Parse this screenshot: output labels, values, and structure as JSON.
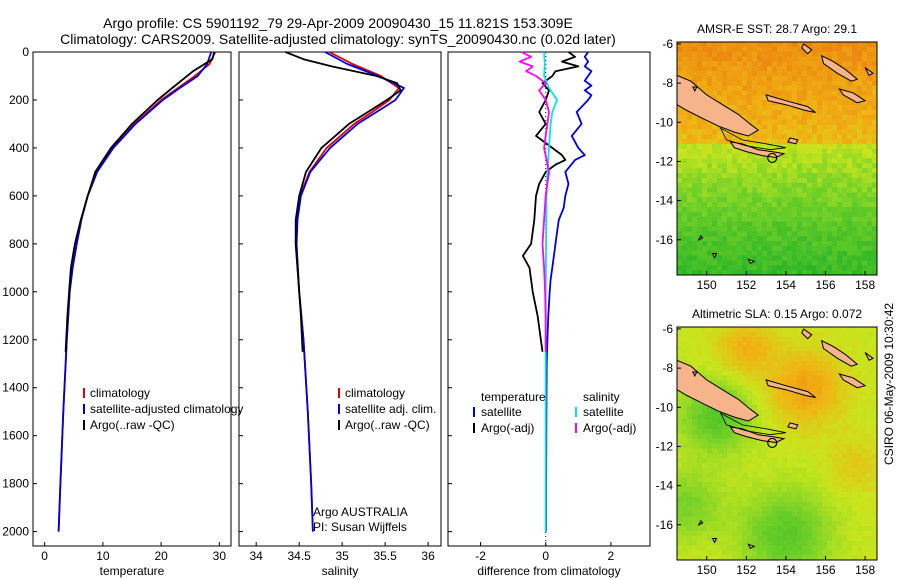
{
  "header": {
    "title_line1": "Argo profile: CS 5901192_79 29-Apr-2009 20090430_15 11.821S 153.309E",
    "title_line2": "Climatology: CARS2009. Satellite-adjusted climatology: synTS_20090430.nc (0.02d later)"
  },
  "footer_stamp": "CSIRO 06-May-2009 10:30:42",
  "colors": {
    "climatology": "#e00000",
    "satellite": "#0000e0",
    "argo": "#000000",
    "sal_satellite": "#00e5ee",
    "sal_argo": "#ff00ff",
    "land": "#f5b48a",
    "coast": "#000000"
  },
  "chart_data": [
    {
      "type": "line",
      "id": "temperature-profile",
      "xlabel": "temperature",
      "ylabel": "",
      "xlim": [
        -2,
        32
      ],
      "ylim": [
        2060,
        0
      ],
      "xticks": [
        0,
        10,
        20,
        30
      ],
      "yticks": [
        0,
        200,
        400,
        600,
        800,
        1000,
        1200,
        1400,
        1600,
        1800,
        2000
      ],
      "legend": [
        "climatology",
        "satellite-adjusted climatology",
        "Argo(..raw -QC)"
      ],
      "legend_placement": "lower-left",
      "series": [
        {
          "name": "climatology",
          "color": "climatology",
          "depth": [
            0,
            50,
            100,
            150,
            200,
            300,
            400,
            500,
            600,
            700,
            800,
            900,
            1000,
            1200,
            1500,
            1800,
            2000
          ],
          "values": [
            29.3,
            28.3,
            25.8,
            22.9,
            20.0,
            15.4,
            11.7,
            9.0,
            7.4,
            6.3,
            5.5,
            4.8,
            4.3,
            3.8,
            3.2,
            2.7,
            2.4
          ]
        },
        {
          "name": "satellite-adjusted climatology",
          "color": "satellite",
          "depth": [
            0,
            50,
            100,
            150,
            200,
            300,
            400,
            500,
            600,
            700,
            800,
            900,
            1000,
            1200,
            1500,
            1800,
            2000
          ],
          "values": [
            28.6,
            27.9,
            26.3,
            23.2,
            20.3,
            15.6,
            11.8,
            9.0,
            7.4,
            6.3,
            5.5,
            4.8,
            4.3,
            3.8,
            3.2,
            2.7,
            2.4
          ]
        },
        {
          "name": "Argo(..raw -QC)",
          "color": "argo",
          "depth": [
            0,
            30,
            80,
            150,
            200,
            300,
            400,
            500,
            600,
            700,
            800,
            900,
            1000,
            1100,
            1250
          ],
          "values": [
            29.1,
            28.8,
            25.5,
            21.9,
            19.4,
            15.0,
            11.4,
            8.7,
            7.4,
            6.2,
            5.2,
            4.5,
            4.2,
            3.9,
            3.6
          ]
        }
      ]
    },
    {
      "type": "line",
      "id": "salinity-profile",
      "xlabel": "salinity",
      "xlim": [
        33.8,
        36.15
      ],
      "ylim": [
        2060,
        0
      ],
      "xticks": [
        34,
        34.5,
        35,
        35.5,
        36
      ],
      "legend": [
        "climatology",
        "satellite adj. clim.",
        "Argo(..raw -QC)"
      ],
      "legend_placement": "lower-right",
      "annotation": [
        "Argo AUSTRALIA",
        "PI: Susan Wijffels"
      ],
      "series": [
        {
          "name": "climatology",
          "color": "climatology",
          "depth": [
            0,
            50,
            100,
            150,
            200,
            250,
            300,
            400,
            500,
            600,
            700,
            800,
            1000,
            1200,
            1500,
            1800,
            2000
          ],
          "values": [
            34.85,
            35.12,
            35.45,
            35.66,
            35.55,
            35.35,
            35.14,
            34.82,
            34.62,
            34.51,
            34.47,
            34.46,
            34.5,
            34.55,
            34.6,
            34.64,
            34.66
          ]
        },
        {
          "name": "satellite adj. clim.",
          "color": "satellite",
          "depth": [
            0,
            50,
            100,
            150,
            200,
            250,
            300,
            400,
            500,
            600,
            700,
            800,
            1000,
            1200,
            1500,
            1800,
            2000
          ],
          "values": [
            34.8,
            35.06,
            35.42,
            35.72,
            35.62,
            35.4,
            35.18,
            34.86,
            34.63,
            34.52,
            34.48,
            34.47,
            34.5,
            34.55,
            34.6,
            34.64,
            34.66
          ]
        },
        {
          "name": "Argo(..raw -QC)",
          "color": "argo",
          "depth": [
            0,
            30,
            60,
            100,
            130,
            160,
            200,
            250,
            300,
            400,
            500,
            600,
            700,
            800,
            900,
            1000,
            1100,
            1250
          ],
          "values": [
            34.34,
            34.55,
            34.88,
            35.4,
            35.64,
            35.68,
            35.52,
            35.3,
            35.08,
            34.76,
            34.58,
            34.5,
            34.46,
            34.46,
            34.48,
            34.5,
            34.52,
            34.54
          ]
        }
      ]
    },
    {
      "type": "line",
      "id": "difference-profile",
      "xlabel": "difference from climatology",
      "xlim": [
        -3,
        3.2
      ],
      "ylim": [
        2060,
        0
      ],
      "xticks": [
        -2,
        0,
        2
      ],
      "legend_titles": [
        "temperature",
        "salinity"
      ],
      "legend": [
        "satellite",
        "Argo(-adj)",
        "satellite",
        "Argo(-adj)"
      ],
      "legend_placement": "lower-center",
      "series": [
        {
          "name": "temperature satellite",
          "color": "satellite",
          "depth": [
            0,
            20,
            40,
            60,
            80,
            100,
            120,
            140,
            160,
            180,
            200,
            250,
            300,
            350,
            400,
            430,
            450,
            500,
            550,
            600,
            650,
            700,
            750,
            800,
            850,
            900,
            950,
            1000,
            1100,
            1200,
            1300,
            1500,
            1800,
            2000
          ],
          "values": [
            1.3,
            1.2,
            1.3,
            1.2,
            1.4,
            1.3,
            1.2,
            1.4,
            1.2,
            1.4,
            1.3,
            0.95,
            1.1,
            0.8,
            1.0,
            1.2,
            0.9,
            0.6,
            0.7,
            0.6,
            0.55,
            0.4,
            0.35,
            0.3,
            0.25,
            0.2,
            0.15,
            0.12,
            0.08,
            0.05,
            0.03,
            0.02,
            0.01,
            0.01
          ]
        },
        {
          "name": "temperature Argo(-adj)",
          "color": "argo",
          "depth": [
            0,
            20,
            40,
            60,
            80,
            100,
            130,
            160,
            200,
            250,
            300,
            350,
            400,
            430,
            450,
            470,
            500,
            550,
            600,
            700,
            800,
            850,
            900,
            1000,
            1100,
            1250
          ],
          "values": [
            0.7,
            0.9,
            0.5,
            1.0,
            0.3,
            0.2,
            -0.1,
            0.1,
            0.0,
            -0.2,
            0.0,
            -0.3,
            0.2,
            0.5,
            0.6,
            0.3,
            0.0,
            -0.2,
            -0.3,
            -0.35,
            -0.45,
            -0.7,
            -0.5,
            -0.4,
            -0.25,
            -0.1
          ]
        },
        {
          "name": "salinity satellite",
          "color": "sal_satellite",
          "depth": [
            0,
            50,
            100,
            150,
            200,
            250,
            300,
            400,
            500,
            600,
            800,
            1000,
            1500,
            2000
          ],
          "values": [
            -0.05,
            -0.03,
            -0.05,
            0.1,
            0.35,
            0.2,
            0.15,
            0.1,
            0.05,
            0.02,
            0.01,
            0.0,
            0.0,
            0.0
          ]
        },
        {
          "name": "salinity Argo(-adj)",
          "color": "sal_argo",
          "depth": [
            0,
            20,
            40,
            60,
            80,
            100,
            130,
            160,
            200,
            250,
            300,
            350,
            400,
            500,
            600,
            700,
            800,
            900,
            1000,
            1100,
            1250
          ],
          "values": [
            -0.75,
            -0.45,
            -0.8,
            -0.4,
            -0.6,
            -0.3,
            0.0,
            -0.2,
            0.0,
            0.1,
            0.05,
            0.0,
            -0.05,
            0.1,
            0.0,
            -0.05,
            -0.1,
            -0.05,
            -0.02,
            0.0,
            0.0
          ]
        }
      ]
    },
    {
      "type": "heatmap",
      "id": "sst-map",
      "title": "AMSR-E SST: 28.7  Argo: 29.1",
      "xlim": [
        148.5,
        158.6
      ],
      "ylim": [
        -17.8,
        -5.9
      ],
      "xticks": [
        150,
        152,
        154,
        156,
        158
      ],
      "yticks": [
        -6,
        -8,
        -10,
        -12,
        -14,
        -16
      ],
      "float_position": [
        153.309,
        -11.821
      ]
    },
    {
      "type": "heatmap",
      "id": "sla-map",
      "title": "Altimetric SLA: 0.15  Argo: 0.072",
      "xlim": [
        148.5,
        158.6
      ],
      "ylim": [
        -17.8,
        -5.9
      ],
      "xticks": [
        150,
        152,
        154,
        156,
        158
      ],
      "yticks": [
        -6,
        -8,
        -10,
        -12,
        -14,
        -16
      ],
      "float_position": [
        153.309,
        -11.821
      ]
    }
  ]
}
